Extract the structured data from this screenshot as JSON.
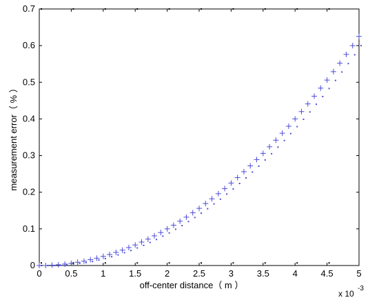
{
  "chart_data": {
    "type": "scatter",
    "xlabel": "off-center distance（ m ）",
    "ylabel": "measurement error（ % ）",
    "x_multiplier_label": "x 10",
    "x_multiplier_exponent": "-3",
    "xlim": [
      0,
      5
    ],
    "ylim": [
      0,
      0.7
    ],
    "x_ticks": [
      "0",
      "0.5",
      "1",
      "1.5",
      "2",
      "2.5",
      "3",
      "3.5",
      "4",
      "4.5",
      "5"
    ],
    "y_ticks": [
      "0",
      "0.1",
      "0.2",
      "0.3",
      "0.4",
      "0.5",
      "0.6",
      "0.7"
    ],
    "grid": false,
    "marker_color": "#4a4ad8",
    "secondary_color": "#000000",
    "series": [
      {
        "marker": "plus",
        "x": [
          0,
          0.1,
          0.2,
          0.3,
          0.4,
          0.5,
          0.6,
          0.7,
          0.8,
          0.9,
          1.0,
          1.1,
          1.2,
          1.3,
          1.4,
          1.5,
          1.6,
          1.7,
          1.8,
          1.9,
          2.0,
          2.1,
          2.2,
          2.3,
          2.4,
          2.5,
          2.6,
          2.7,
          2.8,
          2.9,
          3.0,
          3.1,
          3.2,
          3.3,
          3.4,
          3.5,
          3.6,
          3.7,
          3.8,
          3.9,
          4.0,
          4.1,
          4.2,
          4.3,
          4.4,
          4.5,
          4.6,
          4.7,
          4.8,
          4.9,
          5.0
        ],
        "y": [
          0,
          0,
          0.001,
          0.002,
          0.004,
          0.006,
          0.009,
          0.012,
          0.016,
          0.02,
          0.025,
          0.03,
          0.036,
          0.042,
          0.049,
          0.056,
          0.064,
          0.072,
          0.081,
          0.09,
          0.1,
          0.11,
          0.121,
          0.132,
          0.144,
          0.156,
          0.169,
          0.182,
          0.196,
          0.21,
          0.225,
          0.24,
          0.256,
          0.272,
          0.289,
          0.306,
          0.324,
          0.342,
          0.361,
          0.38,
          0.4,
          0.42,
          0.441,
          0.462,
          0.484,
          0.506,
          0.529,
          0.552,
          0.576,
          0.6,
          0.625
        ]
      },
      {
        "marker": "dot",
        "x": [
          0,
          0.1,
          0.2,
          0.3,
          0.4,
          0.5,
          0.6,
          0.7,
          0.8,
          0.9,
          1.0,
          1.1,
          1.2,
          1.3,
          1.4,
          1.5,
          1.6,
          1.7,
          1.8,
          1.9,
          2.0,
          2.1,
          2.2,
          2.3,
          2.4,
          2.5,
          2.6,
          2.7,
          2.8,
          2.9,
          3.0,
          3.1,
          3.2,
          3.3,
          3.4,
          3.5,
          3.6,
          3.7,
          3.8,
          3.9,
          4.0,
          4.1,
          4.2,
          4.3,
          4.4,
          4.5,
          4.6,
          4.7,
          4.8,
          4.9,
          5.0
        ],
        "y": [
          0,
          0,
          0,
          0.001,
          0.002,
          0.004,
          0.006,
          0.008,
          0.011,
          0.015,
          0.019,
          0.024,
          0.029,
          0.035,
          0.041,
          0.048,
          0.055,
          0.063,
          0.071,
          0.08,
          0.089,
          0.099,
          0.109,
          0.12,
          0.131,
          0.143,
          0.155,
          0.168,
          0.181,
          0.195,
          0.209,
          0.224,
          0.239,
          0.255,
          0.271,
          0.288,
          0.305,
          0.323,
          0.341,
          0.36,
          0.379,
          0.399,
          0.419,
          0.44,
          0.461,
          0.483,
          0.505,
          0.528,
          0.551,
          0.575,
          0.6
        ]
      },
      {
        "marker": "dot",
        "x": [
          0,
          0.5,
          1.0,
          1.5,
          2.0,
          2.5,
          3.0,
          3.5,
          4.0,
          4.5
        ],
        "y": [
          0.7,
          0.7,
          0.7,
          0.7,
          0.7,
          0.7,
          0.7,
          0.7,
          0.7,
          0.7
        ]
      },
      {
        "marker": "dot",
        "x": [
          0,
          0.5,
          1.0,
          1.5,
          2.0,
          2.5,
          3.0,
          3.5,
          4.0,
          4.5
        ],
        "y": [
          0.007,
          0.007,
          0.007,
          0.007,
          0.007,
          0.007,
          0.007,
          0.007,
          0.007,
          0.007
        ]
      }
    ]
  }
}
